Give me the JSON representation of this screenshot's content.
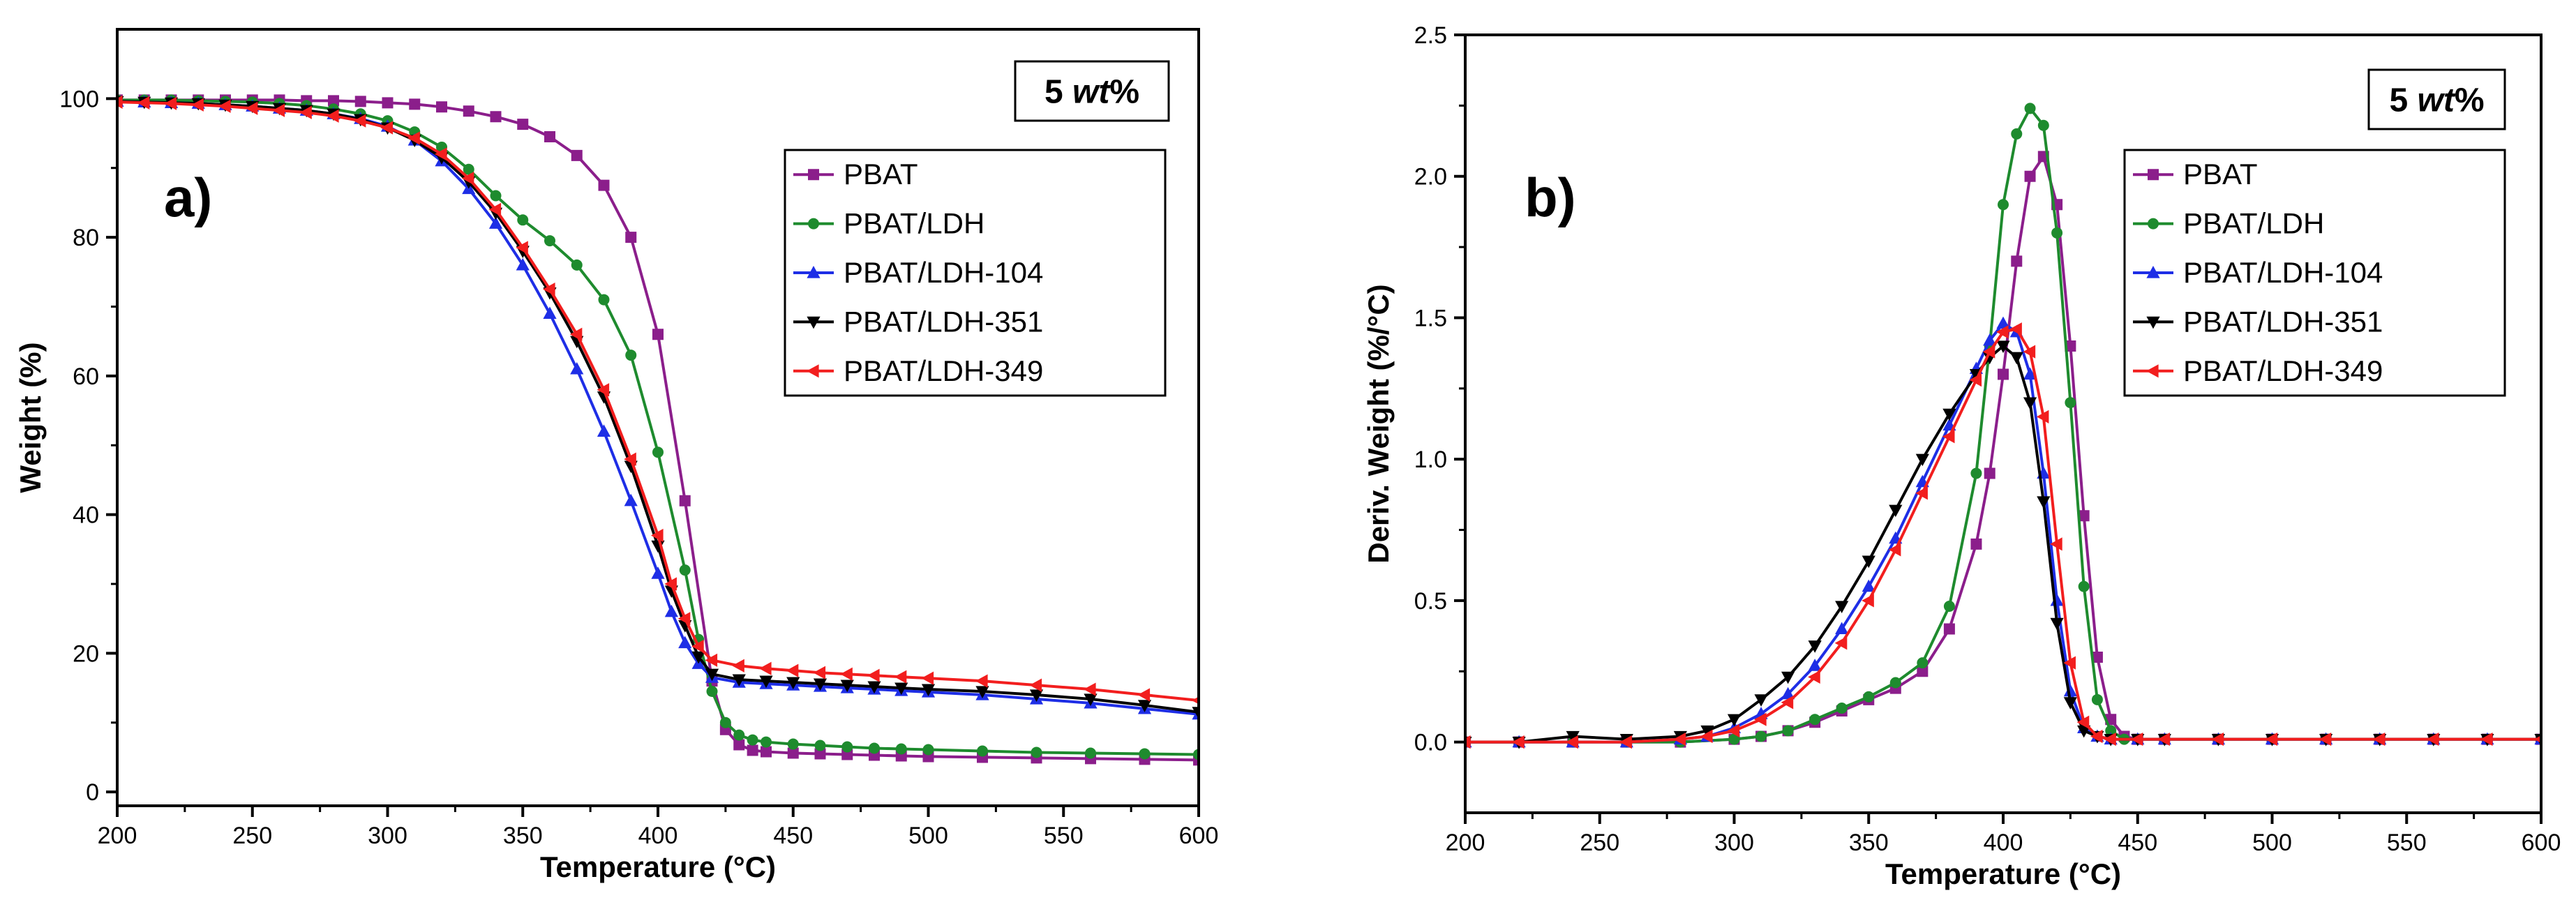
{
  "chart_data": [
    {
      "type": "line",
      "panel_label": "a)",
      "annotation": "5 wt%",
      "annotation_prefix": "5",
      "annotation_italic": "wt",
      "annotation_suffix": "%",
      "xlabel": "Temperature (°C)",
      "ylabel": "Weight (%)",
      "xlim": [
        200,
        600
      ],
      "ylim": [
        -2,
        110
      ],
      "xticks": [
        200,
        250,
        300,
        350,
        400,
        450,
        500,
        550,
        600
      ],
      "yticks": [
        0,
        20,
        40,
        60,
        80,
        100
      ],
      "legend_position": "right",
      "series": [
        {
          "name": "PBAT",
          "color": "#8B1E8B",
          "marker": "square",
          "x": [
            200,
            210,
            220,
            230,
            240,
            250,
            260,
            270,
            280,
            290,
            300,
            310,
            320,
            330,
            340,
            350,
            360,
            370,
            380,
            390,
            400,
            410,
            420,
            425,
            430,
            435,
            440,
            450,
            460,
            470,
            480,
            490,
            500,
            520,
            540,
            560,
            580,
            600
          ],
          "y": [
            99.8,
            99.8,
            99.8,
            99.8,
            99.8,
            99.8,
            99.8,
            99.7,
            99.7,
            99.6,
            99.4,
            99.2,
            98.8,
            98.2,
            97.4,
            96.3,
            94.5,
            91.8,
            87.5,
            80.0,
            66.0,
            42.0,
            16.0,
            9.0,
            6.8,
            6.0,
            5.8,
            5.6,
            5.5,
            5.4,
            5.3,
            5.2,
            5.1,
            5.0,
            4.9,
            4.8,
            4.7,
            4.6
          ]
        },
        {
          "name": "PBAT/LDH",
          "color": "#1E8B2E",
          "marker": "circle",
          "x": [
            200,
            210,
            220,
            230,
            240,
            250,
            260,
            270,
            280,
            290,
            300,
            310,
            320,
            330,
            340,
            350,
            360,
            370,
            380,
            390,
            400,
            410,
            415,
            420,
            425,
            430,
            435,
            440,
            450,
            460,
            470,
            480,
            490,
            500,
            520,
            540,
            560,
            580,
            600
          ],
          "y": [
            99.8,
            99.8,
            99.8,
            99.7,
            99.6,
            99.5,
            99.3,
            99.0,
            98.5,
            97.8,
            96.8,
            95.2,
            93.0,
            89.8,
            86.0,
            82.5,
            79.5,
            76.0,
            71.0,
            63.0,
            49.0,
            32.0,
            22.0,
            14.5,
            10.0,
            8.2,
            7.5,
            7.2,
            6.9,
            6.7,
            6.5,
            6.3,
            6.2,
            6.1,
            5.9,
            5.7,
            5.6,
            5.5,
            5.4
          ]
        },
        {
          "name": "PBAT/LDH-104",
          "color": "#1E2EE6",
          "marker": "triangle-up",
          "x": [
            200,
            210,
            220,
            230,
            240,
            250,
            260,
            270,
            280,
            290,
            300,
            310,
            320,
            330,
            340,
            350,
            360,
            370,
            380,
            390,
            400,
            405,
            410,
            415,
            420,
            430,
            440,
            450,
            460,
            470,
            480,
            490,
            500,
            520,
            540,
            560,
            580,
            600
          ],
          "y": [
            99.6,
            99.5,
            99.4,
            99.3,
            99.1,
            98.9,
            98.6,
            98.3,
            97.8,
            97.1,
            96.0,
            94.0,
            91.0,
            87.0,
            82.0,
            76.0,
            69.0,
            61.0,
            52.0,
            42.0,
            31.5,
            26.0,
            21.5,
            18.5,
            16.5,
            15.8,
            15.6,
            15.4,
            15.2,
            15.0,
            14.8,
            14.6,
            14.4,
            14.0,
            13.4,
            12.8,
            12.0,
            11.2
          ]
        },
        {
          "name": "PBAT/LDH-351",
          "color": "#000000",
          "marker": "triangle-down",
          "x": [
            200,
            210,
            220,
            230,
            240,
            250,
            260,
            270,
            280,
            290,
            300,
            310,
            320,
            330,
            340,
            350,
            360,
            370,
            380,
            390,
            400,
            405,
            410,
            415,
            420,
            430,
            440,
            450,
            460,
            470,
            480,
            490,
            500,
            520,
            540,
            560,
            580,
            600
          ],
          "y": [
            99.6,
            99.5,
            99.4,
            99.3,
            99.1,
            98.9,
            98.6,
            98.3,
            97.8,
            97.0,
            95.8,
            94.0,
            91.5,
            88.0,
            83.5,
            78.0,
            72.0,
            65.0,
            57.0,
            47.0,
            35.5,
            29.0,
            24.0,
            19.5,
            17.0,
            16.2,
            16.0,
            15.8,
            15.6,
            15.4,
            15.2,
            15.0,
            14.8,
            14.5,
            14.0,
            13.4,
            12.5,
            11.5
          ]
        },
        {
          "name": "PBAT/LDH-349",
          "color": "#F21E1E",
          "marker": "triangle-left",
          "x": [
            200,
            210,
            220,
            230,
            240,
            250,
            260,
            270,
            280,
            290,
            300,
            310,
            320,
            330,
            340,
            350,
            360,
            370,
            380,
            390,
            400,
            405,
            410,
            415,
            420,
            430,
            440,
            450,
            460,
            470,
            480,
            490,
            500,
            520,
            540,
            560,
            580,
            600
          ],
          "y": [
            99.5,
            99.4,
            99.3,
            99.1,
            98.9,
            98.6,
            98.3,
            98.0,
            97.5,
            96.8,
            95.8,
            94.3,
            92.0,
            88.5,
            84.0,
            78.5,
            72.5,
            66.0,
            58.0,
            48.0,
            37.0,
            30.0,
            25.0,
            21.0,
            19.0,
            18.2,
            17.8,
            17.5,
            17.2,
            17.0,
            16.8,
            16.6,
            16.4,
            16.0,
            15.4,
            14.8,
            14.0,
            13.2
          ]
        }
      ]
    },
    {
      "type": "line",
      "panel_label": "b)",
      "annotation": "5 wt%",
      "annotation_prefix": "5",
      "annotation_italic": "wt",
      "annotation_suffix": "%",
      "xlabel": "Temperature (°C)",
      "ylabel": "Deriv. Weight (%/°C)",
      "xlim": [
        200,
        600
      ],
      "ylim": [
        -0.25,
        2.5
      ],
      "xticks": [
        200,
        250,
        300,
        350,
        400,
        450,
        500,
        550,
        600
      ],
      "yticks": [
        0.0,
        0.5,
        1.0,
        1.5,
        2.0,
        2.5
      ],
      "ytick_labels": [
        "0.0",
        "0.5",
        "1.0",
        "1.5",
        "2.0",
        "2.5"
      ],
      "legend_position": "right",
      "series": [
        {
          "name": "PBAT",
          "color": "#8B1E8B",
          "marker": "square",
          "x": [
            200,
            220,
            240,
            260,
            280,
            300,
            310,
            320,
            330,
            340,
            350,
            360,
            370,
            380,
            390,
            395,
            400,
            405,
            410,
            415,
            420,
            425,
            430,
            435,
            440,
            445,
            450,
            460,
            480,
            500,
            520,
            540,
            560,
            580,
            600
          ],
          "y": [
            0.0,
            0.0,
            0.0,
            0.0,
            0.0,
            0.01,
            0.02,
            0.04,
            0.07,
            0.11,
            0.15,
            0.19,
            0.25,
            0.4,
            0.7,
            0.95,
            1.3,
            1.7,
            2.0,
            2.07,
            1.9,
            1.4,
            0.8,
            0.3,
            0.08,
            0.02,
            0.01,
            0.01,
            0.01,
            0.01,
            0.01,
            0.01,
            0.01,
            0.01,
            0.01
          ]
        },
        {
          "name": "PBAT/LDH",
          "color": "#1E8B2E",
          "marker": "circle",
          "x": [
            200,
            220,
            240,
            260,
            280,
            300,
            310,
            320,
            330,
            340,
            350,
            360,
            370,
            380,
            390,
            395,
            400,
            405,
            410,
            415,
            420,
            425,
            430,
            435,
            440,
            445,
            450,
            460,
            480,
            500,
            520,
            540,
            560,
            580,
            600
          ],
          "y": [
            0.0,
            0.0,
            0.0,
            0.0,
            0.0,
            0.01,
            0.02,
            0.04,
            0.08,
            0.12,
            0.16,
            0.21,
            0.28,
            0.48,
            0.95,
            1.4,
            1.9,
            2.15,
            2.24,
            2.18,
            1.8,
            1.2,
            0.55,
            0.15,
            0.04,
            0.01,
            0.01,
            0.01,
            0.01,
            0.01,
            0.01,
            0.01,
            0.01,
            0.01,
            0.01
          ]
        },
        {
          "name": "PBAT/LDH-104",
          "color": "#1E2EE6",
          "marker": "triangle-up",
          "x": [
            200,
            220,
            240,
            260,
            280,
            290,
            300,
            310,
            320,
            330,
            340,
            350,
            360,
            370,
            380,
            390,
            395,
            400,
            405,
            410,
            415,
            420,
            425,
            430,
            435,
            440,
            450,
            460,
            480,
            500,
            520,
            540,
            560,
            580,
            600
          ],
          "y": [
            0.0,
            0.0,
            0.0,
            0.0,
            0.01,
            0.02,
            0.05,
            0.1,
            0.17,
            0.27,
            0.4,
            0.55,
            0.72,
            0.92,
            1.12,
            1.32,
            1.42,
            1.48,
            1.45,
            1.3,
            0.95,
            0.5,
            0.18,
            0.05,
            0.02,
            0.01,
            0.01,
            0.01,
            0.01,
            0.01,
            0.01,
            0.01,
            0.01,
            0.01,
            0.01
          ]
        },
        {
          "name": "PBAT/LDH-351",
          "color": "#000000",
          "marker": "triangle-down",
          "x": [
            200,
            220,
            240,
            260,
            280,
            290,
            300,
            310,
            320,
            330,
            340,
            350,
            360,
            370,
            380,
            390,
            395,
            400,
            405,
            410,
            415,
            420,
            425,
            430,
            435,
            440,
            450,
            460,
            480,
            500,
            520,
            540,
            560,
            580,
            600
          ],
          "y": [
            0.0,
            0.0,
            0.02,
            0.01,
            0.02,
            0.04,
            0.08,
            0.15,
            0.23,
            0.34,
            0.48,
            0.64,
            0.82,
            1.0,
            1.16,
            1.3,
            1.36,
            1.4,
            1.36,
            1.2,
            0.85,
            0.42,
            0.14,
            0.04,
            0.02,
            0.01,
            0.01,
            0.01,
            0.01,
            0.01,
            0.01,
            0.01,
            0.01,
            0.01,
            0.01
          ]
        },
        {
          "name": "PBAT/LDH-349",
          "color": "#F21E1E",
          "marker": "triangle-left",
          "x": [
            200,
            220,
            240,
            260,
            280,
            290,
            300,
            310,
            320,
            330,
            340,
            350,
            360,
            370,
            380,
            390,
            395,
            400,
            405,
            410,
            415,
            420,
            425,
            430,
            435,
            440,
            450,
            460,
            480,
            500,
            520,
            540,
            560,
            580,
            600
          ],
          "y": [
            0.0,
            0.0,
            0.0,
            0.0,
            0.01,
            0.02,
            0.04,
            0.08,
            0.14,
            0.23,
            0.35,
            0.5,
            0.68,
            0.88,
            1.08,
            1.28,
            1.38,
            1.45,
            1.46,
            1.38,
            1.15,
            0.7,
            0.28,
            0.07,
            0.02,
            0.01,
            0.01,
            0.01,
            0.01,
            0.01,
            0.01,
            0.01,
            0.01,
            0.01,
            0.01
          ]
        }
      ]
    }
  ]
}
